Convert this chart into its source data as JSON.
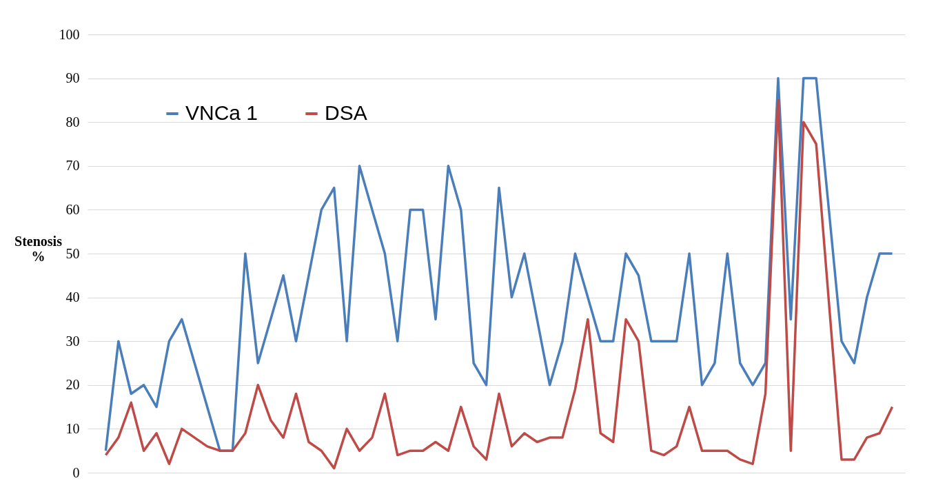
{
  "chart_data": {
    "type": "line",
    "ylabel": "Stenosis %",
    "categories": [
      null,
      null,
      null,
      null,
      null,
      null,
      null,
      null,
      null,
      null,
      null,
      null,
      null,
      null,
      null,
      null,
      null,
      null,
      null,
      null,
      null,
      null,
      null,
      null,
      null,
      null,
      null,
      null,
      null,
      null,
      null,
      null,
      null,
      null,
      null,
      null,
      null,
      null,
      null,
      null,
      null,
      null,
      null,
      null,
      null,
      null,
      null,
      null,
      null,
      null,
      null,
      null,
      null,
      null,
      null,
      null,
      null,
      null,
      null,
      null,
      null,
      null,
      null
    ],
    "series": [
      {
        "name": "VNCa 1",
        "color": "#4a7ebb",
        "values": [
          5,
          30,
          18,
          20,
          15,
          30,
          35,
          25,
          15,
          5,
          5,
          50,
          25,
          35,
          45,
          30,
          45,
          60,
          65,
          30,
          70,
          60,
          50,
          30,
          60,
          60,
          35,
          70,
          60,
          25,
          20,
          65,
          40,
          50,
          35,
          20,
          30,
          50,
          40,
          30,
          30,
          50,
          45,
          30,
          30,
          30,
          50,
          20,
          25,
          50,
          25,
          20,
          25,
          90,
          35,
          90,
          90,
          60,
          30,
          25,
          40,
          50,
          50
        ]
      },
      {
        "name": "DSA",
        "color": "#be4b48",
        "values": [
          4,
          8,
          16,
          5,
          9,
          2,
          10,
          8,
          6,
          5,
          5,
          9,
          20,
          12,
          8,
          18,
          7,
          5,
          1,
          10,
          5,
          8,
          18,
          4,
          5,
          5,
          7,
          5,
          15,
          6,
          3,
          18,
          6,
          9,
          7,
          8,
          8,
          19,
          35,
          9,
          7,
          35,
          30,
          5,
          4,
          6,
          15,
          5,
          5,
          5,
          3,
          2,
          18,
          85,
          5,
          80,
          75,
          39,
          3,
          3,
          8,
          9,
          15
        ]
      }
    ],
    "ylim": [
      0,
      100
    ],
    "yticks": [
      0,
      10,
      20,
      30,
      40,
      50,
      60,
      70,
      80,
      90,
      100
    ],
    "grid": "y",
    "legend": "top left",
    "tick_labels": "y",
    "marker": "none",
    "line_style": "solid"
  }
}
